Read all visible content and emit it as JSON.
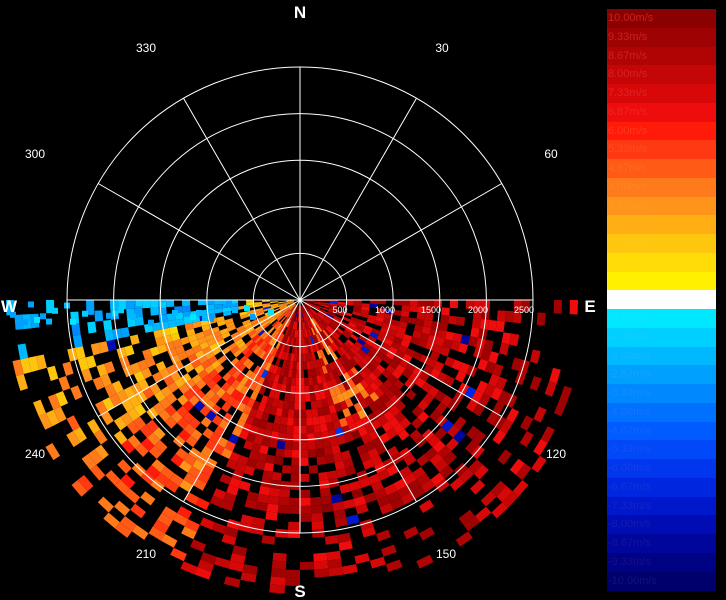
{
  "radar": {
    "compass": {
      "north": "N",
      "south": "S",
      "east": "E",
      "west": "W"
    },
    "bearings": [
      "30",
      "60",
      "120",
      "150",
      "210",
      "240",
      "300",
      "330"
    ],
    "range_labels": [
      "500",
      "1000",
      "1500",
      "2000",
      "2500"
    ],
    "max_range": 2500,
    "colors": {
      "background": "#000000",
      "grid": "#ffffff",
      "text": "#ffffff"
    },
    "data_sector": {
      "start_bearing_deg": 90,
      "end_bearing_deg": 270,
      "max_range": 2500
    }
  },
  "legend": {
    "items": [
      {
        "label": "10.00m/s",
        "color": "#8b0000",
        "text_color": "#cc2020"
      },
      {
        "label": "9.33m/s",
        "color": "#9e0202",
        "text_color": "#cc2020"
      },
      {
        "label": "8.67m/s",
        "color": "#b00404",
        "text_color": "#cc2020"
      },
      {
        "label": "8.00m/s",
        "color": "#c40606",
        "text_color": "#d62222"
      },
      {
        "label": "7.33m/s",
        "color": "#d80808",
        "text_color": "#e02424"
      },
      {
        "label": "6.87m/s",
        "color": "#ee0c0c",
        "text_color": "#ee2424"
      },
      {
        "label": "6.00m/s",
        "color": "#ff1a0a",
        "text_color": "#ff3a1a"
      },
      {
        "label": "5.33m/s",
        "color": "#ff3a12",
        "text_color": "#ff4c1a"
      },
      {
        "label": "4.67m/s",
        "color": "#ff5a16",
        "text_color": "#ff6a1e"
      },
      {
        "label": "4.00m/s",
        "color": "#ff7a1a",
        "text_color": "#ff8422"
      },
      {
        "label": "3.33m/s",
        "color": "#ff941a",
        "text_color": "#ff9a22"
      },
      {
        "label": "2.67m/s",
        "color": "#ffae14",
        "text_color": "#ffb21e"
      },
      {
        "label": "2.00m/s",
        "color": "#ffc60e",
        "text_color": "#ffc81a"
      },
      {
        "label": "1.33m/s",
        "color": "#ffdc06",
        "text_color": "#ffdc14"
      },
      {
        "label": "0.67m/s",
        "color": "#fff000",
        "text_color": "#fff00c"
      },
      {
        "label": "0.00m/s",
        "color": "#ffffff",
        "text_color": "#ffffff"
      },
      {
        "label": "-0.67m/s",
        "color": "#00e8ff",
        "text_color": "#14e2ff"
      },
      {
        "label": "-1.33m/s",
        "color": "#00d0ff",
        "text_color": "#14ccff"
      },
      {
        "label": "-2.00m/s",
        "color": "#00b8ff",
        "text_color": "#14b8ff"
      },
      {
        "label": "-2.67m/s",
        "color": "#00a0ff",
        "text_color": "#14a2ff"
      },
      {
        "label": "-3.33m/s",
        "color": "#0088ff",
        "text_color": "#148cff"
      },
      {
        "label": "-4.00m/s",
        "color": "#0070ff",
        "text_color": "#1476ff"
      },
      {
        "label": "-4.67m/s",
        "color": "#005cff",
        "text_color": "#1462ff"
      },
      {
        "label": "-5.33m/s",
        "color": "#0048f8",
        "text_color": "#1450f0"
      },
      {
        "label": "-6.00m/s",
        "color": "#0036ee",
        "text_color": "#1440e6"
      },
      {
        "label": "-6.67m/s",
        "color": "#0026e0",
        "text_color": "#1432d8"
      },
      {
        "label": "-7.33m/s",
        "color": "#0018cc",
        "text_color": "#1426c4"
      },
      {
        "label": "-8.00m/s",
        "color": "#000cb4",
        "text_color": "#141cb0"
      },
      {
        "label": "-8.67m/s",
        "color": "#00069c",
        "text_color": "#14149c"
      },
      {
        "label": "-9.33m/s",
        "color": "#000284",
        "text_color": "#141088"
      },
      {
        "label": "-10.00m/s",
        "color": "#00006c",
        "text_color": "#14107a"
      }
    ]
  }
}
